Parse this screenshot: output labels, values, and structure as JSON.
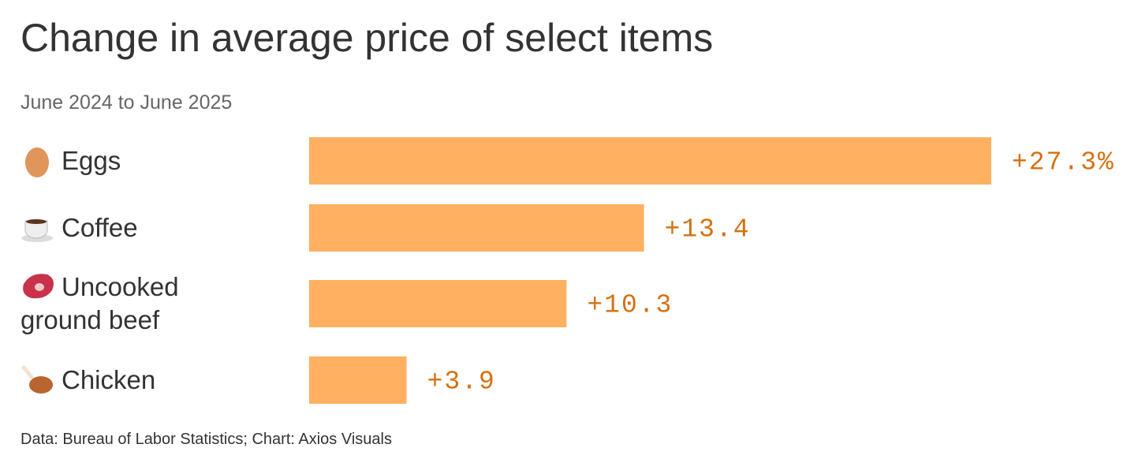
{
  "chart_data": {
    "type": "bar",
    "orientation": "horizontal",
    "title": "Change in average price of select items",
    "subtitle": "June 2024 to June 2025",
    "source": "Data: Bureau of Labor Statistics; Chart: Axios Visuals",
    "categories": [
      "Eggs",
      "Coffee",
      "Uncooked ground beef",
      "Chicken"
    ],
    "values": [
      27.3,
      13.4,
      10.3,
      3.9
    ],
    "value_labels": [
      "+27.3%",
      "+13.4",
      "+10.3",
      "+3.9"
    ],
    "color": "#ffb061"
  }
}
